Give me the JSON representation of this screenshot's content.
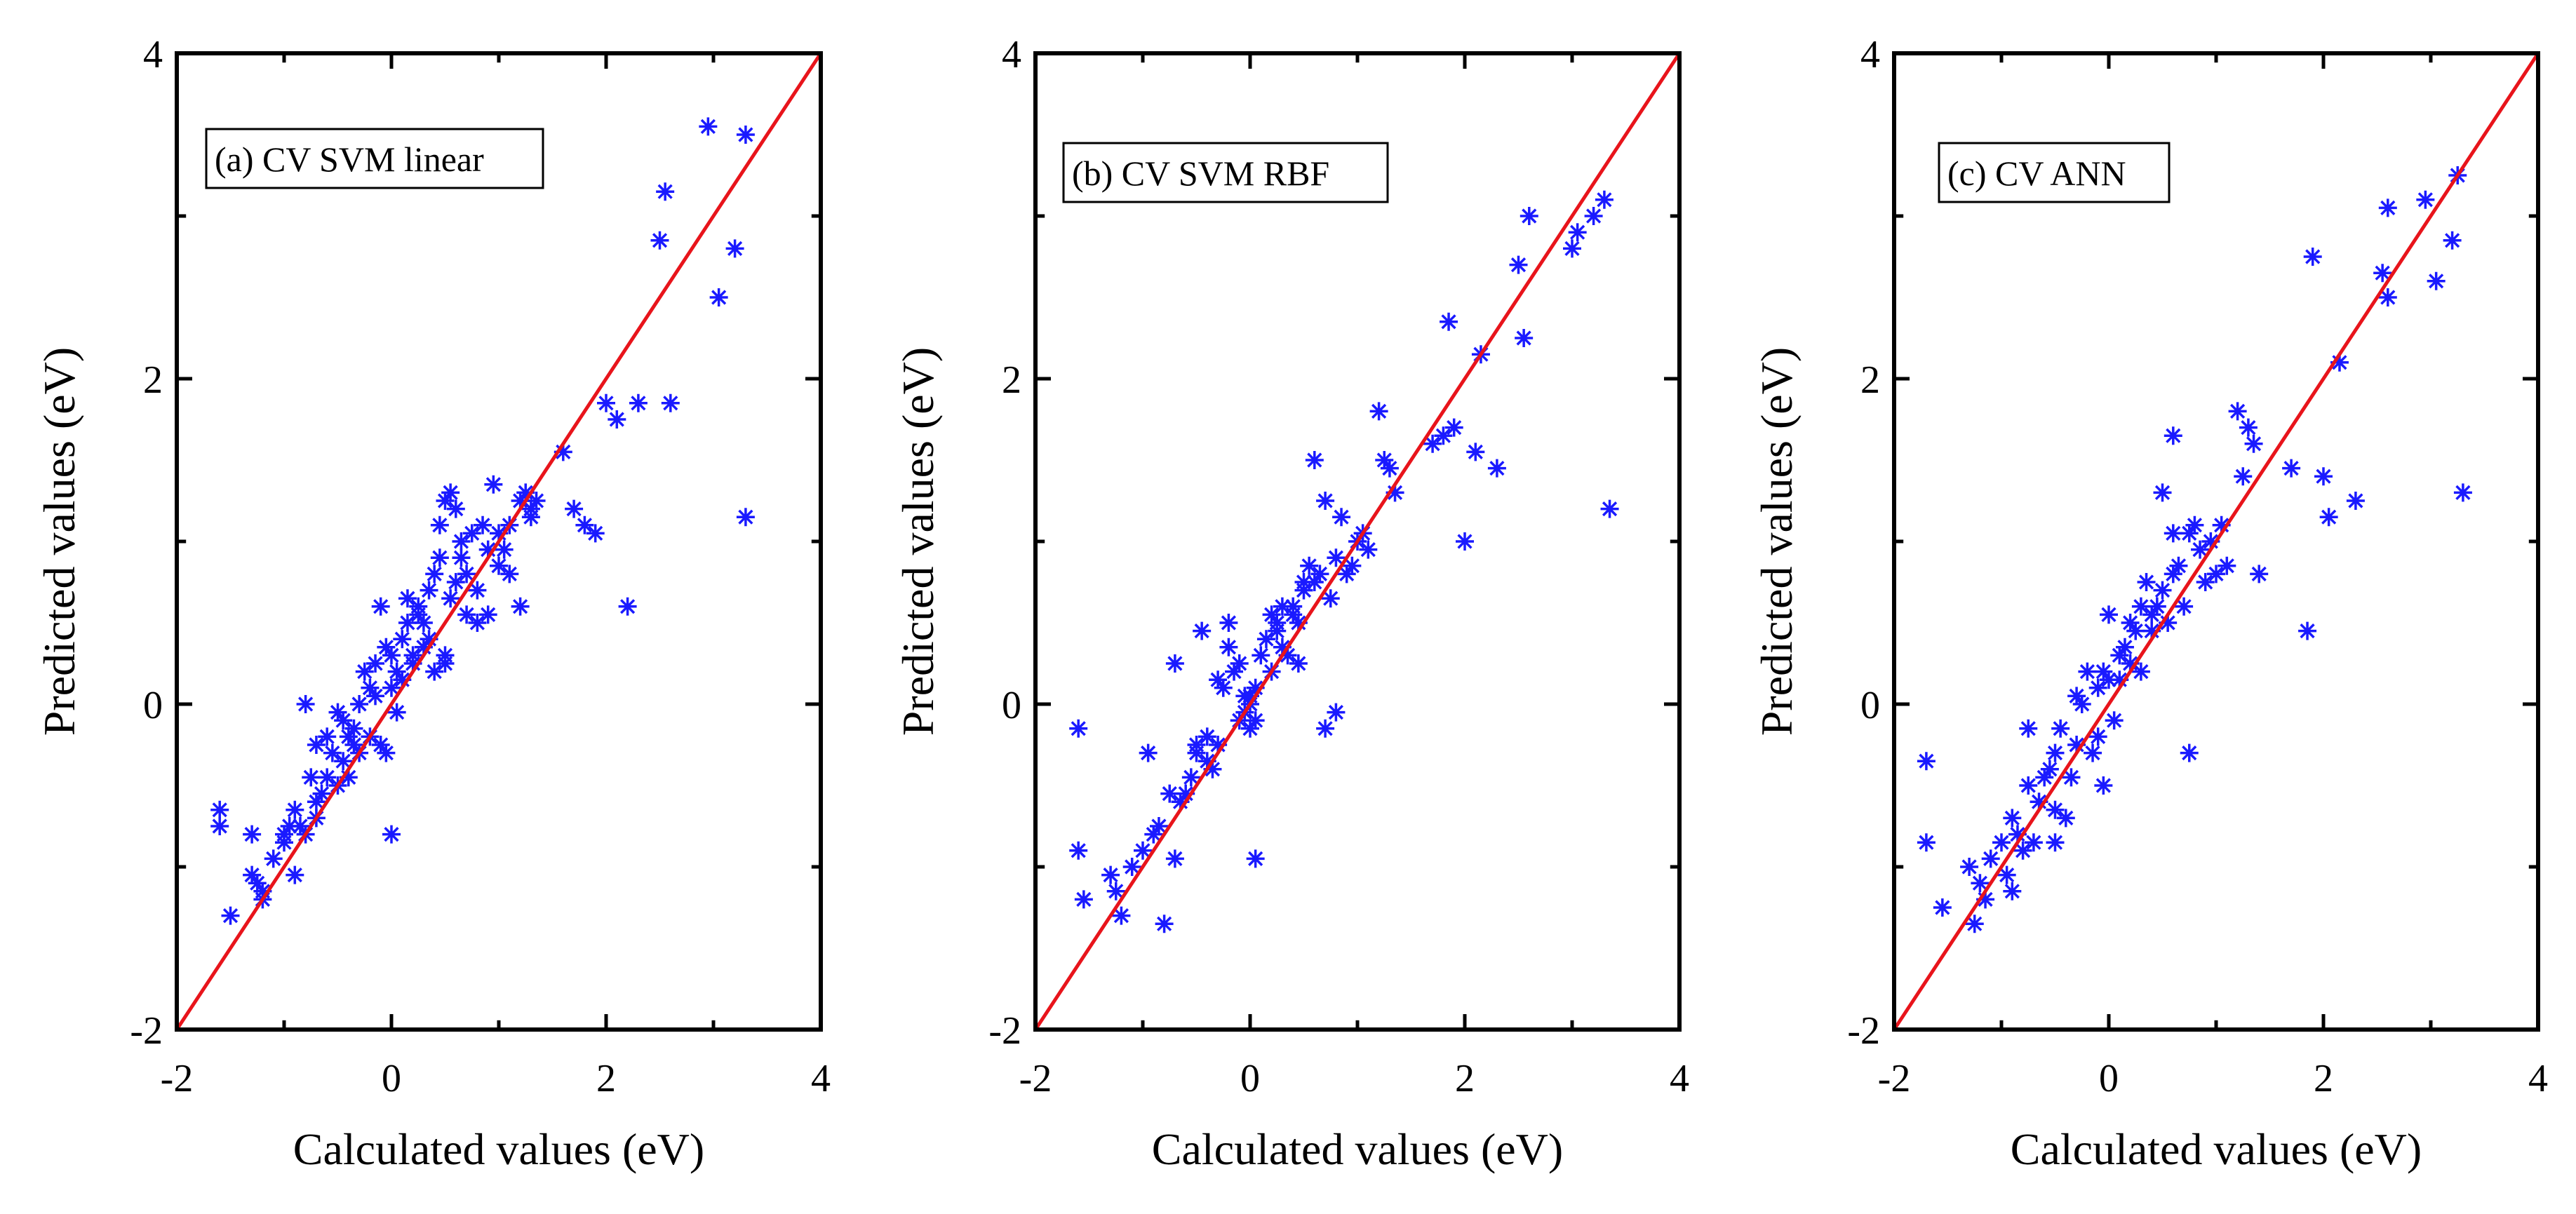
{
  "colors": {
    "marker": "#1a1aff",
    "fit_line": "#e8141b",
    "axes": "#000000",
    "background": "#ffffff"
  },
  "chart_data": [
    {
      "type": "scatter",
      "legend": "(a) CV SVM linear",
      "legend_placement": "top-left",
      "xlabel": "Calculated values (eV)",
      "ylabel": "Predicted values (eV)",
      "xlim": [
        -2,
        4
      ],
      "ylim": [
        -2,
        4
      ],
      "xticks": [
        "-2",
        "0",
        "2",
        "4"
      ],
      "yticks": [
        "-2",
        "0",
        "2",
        "4"
      ],
      "reference_line": {
        "x": [
          -2,
          4
        ],
        "y": [
          -2,
          4
        ]
      },
      "marker": "asterisk",
      "x": [
        -1.6,
        -1.6,
        -1.5,
        -1.3,
        -1.3,
        -1.25,
        -1.2,
        -1.2,
        -1.1,
        -1.0,
        -1.0,
        -0.95,
        -0.9,
        -0.9,
        -0.85,
        -0.8,
        -0.8,
        -0.75,
        -0.7,
        -0.7,
        -0.7,
        -0.65,
        -0.6,
        -0.6,
        -0.55,
        -0.5,
        -0.5,
        -0.45,
        -0.45,
        -0.4,
        -0.4,
        -0.35,
        -0.35,
        -0.3,
        -0.3,
        -0.25,
        -0.2,
        -0.2,
        -0.15,
        -0.1,
        -0.1,
        -0.05,
        -0.05,
        0.0,
        0.0,
        0.0,
        0.05,
        0.05,
        0.1,
        0.1,
        0.15,
        0.2,
        0.2,
        0.25,
        0.25,
        0.3,
        0.3,
        0.35,
        0.4,
        0.4,
        0.45,
        0.45,
        0.5,
        0.5,
        0.5,
        0.55,
        0.55,
        0.6,
        0.6,
        0.65,
        0.65,
        0.7,
        0.7,
        0.75,
        0.8,
        0.8,
        0.85,
        0.9,
        0.9,
        0.95,
        1.0,
        1.0,
        1.05,
        1.1,
        1.1,
        1.2,
        1.2,
        1.25,
        1.3,
        1.3,
        1.35,
        1.6,
        1.7,
        1.8,
        1.9,
        2.0,
        2.1,
        2.2,
        2.3,
        2.5,
        2.55,
        2.6,
        2.95,
        3.05,
        3.2,
        3.3,
        3.3,
        0.15,
        0.35,
        -0.15
      ],
      "y": [
        -0.65,
        -0.75,
        -1.3,
        -0.8,
        -1.05,
        -1.1,
        -1.2,
        -1.15,
        -0.95,
        -0.8,
        -0.85,
        -0.75,
        -0.65,
        -1.05,
        -0.75,
        -0.8,
        0.0,
        -0.45,
        -0.25,
        -0.6,
        -0.7,
        -0.55,
        -0.45,
        -0.2,
        -0.3,
        -0.05,
        -0.5,
        -0.1,
        -0.35,
        -0.2,
        -0.45,
        -0.25,
        -0.15,
        0.0,
        -0.3,
        0.2,
        0.1,
        -0.2,
        0.05,
        0.6,
        -0.25,
        0.35,
        -0.3,
        0.1,
        0.3,
        -0.8,
        0.2,
        -0.05,
        0.4,
        0.15,
        0.5,
        0.3,
        0.25,
        0.55,
        0.6,
        0.35,
        0.5,
        0.7,
        0.8,
        0.2,
        1.1,
        0.9,
        1.25,
        0.3,
        0.25,
        1.3,
        0.65,
        1.2,
        0.75,
        0.9,
        1.0,
        0.8,
        0.55,
        1.05,
        0.7,
        0.5,
        1.1,
        0.95,
        0.55,
        1.35,
        1.05,
        0.85,
        0.95,
        1.1,
        0.8,
        1.25,
        0.6,
        1.3,
        1.2,
        1.15,
        1.25,
        1.55,
        1.2,
        1.1,
        1.05,
        1.85,
        1.75,
        0.6,
        1.85,
        2.85,
        3.15,
        1.85,
        3.55,
        2.5,
        2.8,
        3.5,
        1.15,
        0.65,
        0.4,
        0.25
      ]
    },
    {
      "type": "scatter",
      "legend": "(b) CV SVM RBF",
      "legend_placement": "top-left",
      "xlabel": "Calculated values (eV)",
      "ylabel": "Predicted values (eV)",
      "xlim": [
        -2,
        4
      ],
      "ylim": [
        -2,
        4
      ],
      "xticks": [
        "-2",
        "0",
        "2",
        "4"
      ],
      "yticks": [
        "-2",
        "0",
        "2",
        "4"
      ],
      "reference_line": {
        "x": [
          -2,
          4
        ],
        "y": [
          -2,
          4
        ]
      },
      "marker": "asterisk",
      "x": [
        -1.6,
        -1.6,
        -1.55,
        -1.3,
        -1.25,
        -1.2,
        -1.1,
        -1.0,
        -0.95,
        -0.9,
        -0.85,
        -0.8,
        -0.75,
        -0.7,
        -0.7,
        -0.65,
        -0.6,
        -0.55,
        -0.5,
        -0.5,
        -0.45,
        -0.4,
        -0.4,
        -0.35,
        -0.3,
        -0.3,
        -0.25,
        -0.2,
        -0.2,
        -0.15,
        -0.1,
        -0.1,
        -0.05,
        0.0,
        0.0,
        0.05,
        0.05,
        0.1,
        0.15,
        0.2,
        0.2,
        0.25,
        0.3,
        0.3,
        0.35,
        0.4,
        0.4,
        0.45,
        0.5,
        0.5,
        0.55,
        0.6,
        0.6,
        0.65,
        0.7,
        0.75,
        0.8,
        0.85,
        0.9,
        0.95,
        1.0,
        1.05,
        1.1,
        1.2,
        1.25,
        1.3,
        1.35,
        1.7,
        1.8,
        1.85,
        1.9,
        2.0,
        2.1,
        2.15,
        2.3,
        2.5,
        2.55,
        2.6,
        3.0,
        3.05,
        3.2,
        3.3,
        3.35,
        0.0,
        0.05,
        0.25,
        0.45,
        -0.05,
        0.8,
        0.7
      ],
      "y": [
        -0.15,
        -0.9,
        -1.2,
        -1.05,
        -1.15,
        -1.3,
        -1.0,
        -0.9,
        -0.3,
        -0.8,
        -0.75,
        -1.35,
        -0.55,
        -0.95,
        0.25,
        -0.6,
        -0.55,
        -0.45,
        -0.25,
        -0.3,
        0.45,
        -0.2,
        -0.35,
        -0.4,
        0.15,
        -0.25,
        0.1,
        0.35,
        0.5,
        0.2,
        0.25,
        -0.1,
        0.05,
        0.0,
        -0.15,
        0.1,
        -0.95,
        0.3,
        0.4,
        0.2,
        0.55,
        0.45,
        0.35,
        0.6,
        0.3,
        0.6,
        0.55,
        0.5,
        0.75,
        0.7,
        0.85,
        0.75,
        1.5,
        0.8,
        1.25,
        0.65,
        0.9,
        1.15,
        0.8,
        0.85,
        1.0,
        1.05,
        0.95,
        1.8,
        1.5,
        1.45,
        1.3,
        1.6,
        1.65,
        2.35,
        1.7,
        1.0,
        1.55,
        2.15,
        1.45,
        2.7,
        2.25,
        3.0,
        2.8,
        2.9,
        3.0,
        3.1,
        1.2,
        0.05,
        -0.1,
        0.5,
        0.25,
        -0.05,
        -0.05,
        -0.15
      ]
    },
    {
      "type": "scatter",
      "legend": "(c) CV ANN",
      "legend_placement": "top-left",
      "xlabel": "Calculated values (eV)",
      "ylabel": "Predicted values (eV)",
      "xlim": [
        -2,
        4
      ],
      "ylim": [
        -2,
        4
      ],
      "xticks": [
        "-2",
        "0",
        "2",
        "4"
      ],
      "yticks": [
        "-2",
        "0",
        "2",
        "4"
      ],
      "reference_line": {
        "x": [
          -2,
          4
        ],
        "y": [
          -2,
          4
        ]
      },
      "marker": "asterisk",
      "x": [
        -1.7,
        -1.7,
        -1.55,
        -1.3,
        -1.25,
        -1.2,
        -1.15,
        -1.1,
        -1.0,
        -0.95,
        -0.9,
        -0.9,
        -0.85,
        -0.8,
        -0.75,
        -0.7,
        -0.65,
        -0.6,
        -0.55,
        -0.5,
        -0.5,
        -0.45,
        -0.4,
        -0.35,
        -0.3,
        -0.3,
        -0.25,
        -0.2,
        -0.15,
        -0.1,
        -0.1,
        -0.05,
        0.0,
        0.0,
        0.05,
        0.1,
        0.1,
        0.15,
        0.2,
        0.2,
        0.25,
        0.3,
        0.3,
        0.35,
        0.4,
        0.45,
        0.5,
        0.5,
        0.55,
        0.6,
        0.6,
        0.65,
        0.7,
        0.75,
        0.8,
        0.85,
        0.9,
        0.95,
        1.0,
        1.05,
        1.1,
        1.2,
        1.25,
        1.3,
        1.35,
        1.4,
        1.7,
        1.85,
        1.9,
        2.0,
        2.05,
        2.15,
        2.3,
        2.55,
        2.6,
        2.6,
        2.95,
        3.05,
        3.2,
        3.25,
        3.3,
        -0.75,
        -0.05,
        0.6,
        0.75,
        0.4,
        -0.5
      ],
      "y": [
        -0.35,
        -0.85,
        -1.25,
        -1.0,
        -1.35,
        -1.1,
        -1.2,
        -0.95,
        -0.85,
        -1.05,
        -0.7,
        -1.15,
        -0.8,
        -0.9,
        -0.5,
        -0.85,
        -0.6,
        -0.45,
        -0.4,
        -0.3,
        -0.65,
        -0.15,
        -0.7,
        -0.45,
        -0.25,
        0.05,
        0.0,
        0.2,
        -0.3,
        0.1,
        -0.2,
        0.2,
        0.15,
        0.55,
        -0.1,
        0.3,
        0.15,
        0.35,
        0.25,
        0.5,
        0.45,
        0.6,
        0.2,
        0.75,
        0.55,
        0.6,
        0.7,
        1.3,
        0.5,
        0.8,
        1.65,
        0.85,
        0.6,
        1.05,
        1.1,
        0.95,
        0.75,
        1.0,
        0.8,
        1.1,
        0.85,
        1.8,
        1.4,
        1.7,
        1.6,
        0.8,
        1.45,
        0.45,
        2.75,
        1.4,
        1.15,
        2.1,
        1.25,
        2.65,
        2.5,
        3.05,
        3.1,
        2.6,
        2.85,
        3.25,
        1.3,
        -0.15,
        -0.5,
        1.05,
        -0.3,
        0.45,
        -0.85
      ]
    }
  ]
}
